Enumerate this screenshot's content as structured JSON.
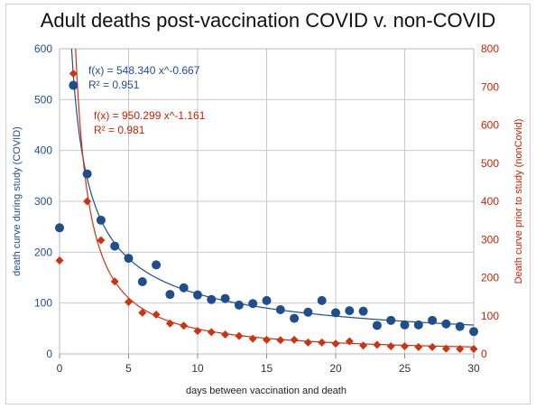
{
  "chart_data": {
    "type": "scatter",
    "title": "Adult deaths post-vaccination COVID v. non-COVID",
    "xlabel": "days between vaccination and death",
    "ylabel_left": "death curve during study (COVID)",
    "ylabel_right": "Death curve prior to study (nonCovid)",
    "xlim": [
      0,
      30
    ],
    "ylim_left": [
      0,
      600
    ],
    "ylim_right": [
      0,
      800
    ],
    "x_ticks": [
      "0",
      "5",
      "10",
      "15",
      "20",
      "25",
      "30"
    ],
    "y_left_ticks": [
      "0",
      "100",
      "200",
      "300",
      "400",
      "500",
      "600"
    ],
    "y_right_ticks": [
      "0",
      "100",
      "200",
      "300",
      "400",
      "500",
      "600",
      "700",
      "800"
    ],
    "grid": true,
    "series": [
      {
        "color": "#1f4e8c",
        "marker": "circle",
        "axis": "left",
        "x": [
          0,
          1,
          2,
          3,
          4,
          5,
          6,
          7,
          8,
          9,
          10,
          11,
          12,
          13,
          14,
          15,
          16,
          17,
          18,
          19,
          20,
          21,
          22,
          23,
          24,
          25,
          26,
          27,
          28,
          29,
          30
        ],
        "y": [
          248,
          528,
          354,
          263,
          212,
          188,
          142,
          175,
          117,
          130,
          116,
          107,
          109,
          96,
          99,
          105,
          87,
          70,
          82,
          105,
          81,
          85,
          84,
          56,
          66,
          57,
          57,
          66,
          59,
          54,
          44
        ]
      },
      {
        "color": "#cc3311",
        "marker": "diamond",
        "axis": "right",
        "x": [
          0,
          1,
          2,
          3,
          4,
          5,
          6,
          7,
          8,
          9,
          10,
          11,
          12,
          13,
          14,
          15,
          16,
          17,
          18,
          19,
          20,
          21,
          22,
          23,
          24,
          25,
          26,
          27,
          28,
          29,
          30
        ],
        "y": [
          245,
          735,
          400,
          298,
          190,
          136,
          108,
          103,
          80,
          74,
          60,
          57,
          51,
          47,
          40,
          37,
          36,
          37,
          30,
          30,
          27,
          33,
          22,
          24,
          20,
          20,
          18,
          18,
          14,
          13,
          13
        ]
      }
    ],
    "trendlines": [
      {
        "axis": "left",
        "color": "#1f4e8c",
        "a": 548.34,
        "b": -0.667,
        "equation": "f(x) = 548.340 x^-0.667",
        "r2": "R² = 0.951"
      },
      {
        "axis": "right",
        "color": "#cc3311",
        "a": 950.299,
        "b": -1.161,
        "equation": "f(x) = 950.299 x^-1.161",
        "r2": "R² = 0.981"
      }
    ]
  }
}
